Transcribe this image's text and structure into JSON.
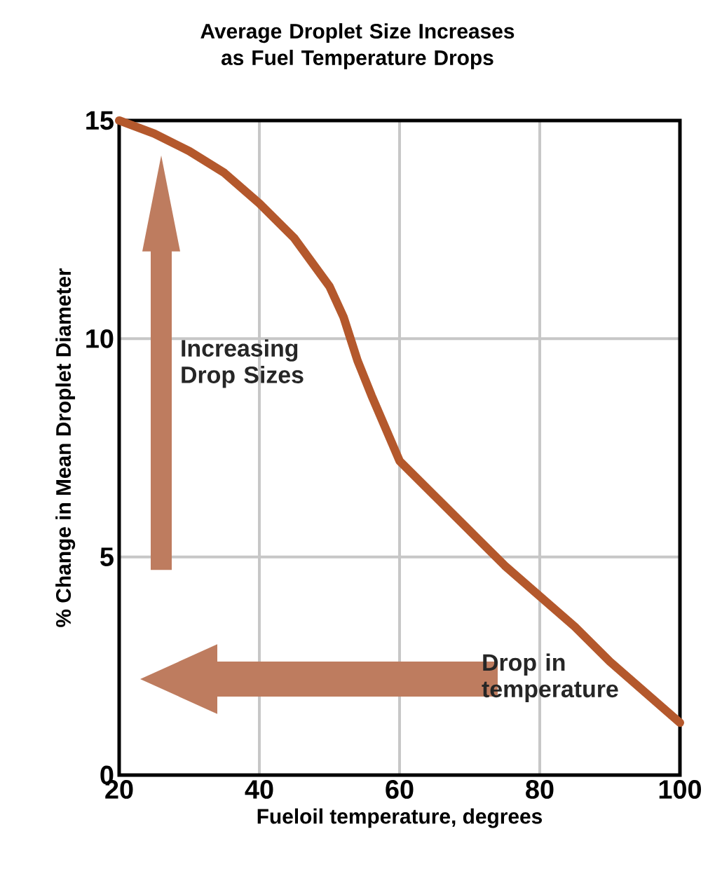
{
  "chart_data": {
    "type": "line",
    "title": "Average Droplet Size Increases as Fuel Temperature Drops",
    "xlabel": "Fueloil temperature, degrees",
    "ylabel": "% Change in Mean Droplet Diameter",
    "x": [
      20,
      25,
      30,
      35,
      40,
      45,
      50,
      52,
      54,
      56,
      60,
      65,
      70,
      75,
      80,
      85,
      90,
      95,
      100
    ],
    "series": [
      {
        "color": "#b4582c",
        "values": [
          15,
          14.7,
          14.3,
          13.8,
          13.1,
          12.3,
          11.2,
          10.5,
          9.5,
          8.7,
          7.2,
          6.4,
          5.6,
          4.8,
          4.1,
          3.4,
          2.6,
          1.9,
          1.2
        ]
      }
    ],
    "xlim": [
      20,
      100
    ],
    "ylim": [
      0,
      15
    ],
    "xticks": [
      20,
      40,
      60,
      80,
      100
    ],
    "yticks": [
      0,
      5,
      10,
      15
    ],
    "grid": true,
    "line_style": "solid",
    "marker": "none",
    "annotations": [
      "Increasing Drop Sizes",
      "Drop in temperature"
    ]
  }
}
